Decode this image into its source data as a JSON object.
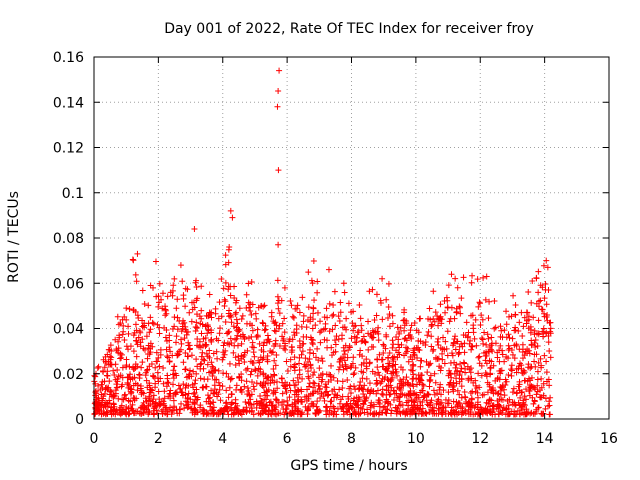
{
  "chart_data": {
    "type": "scatter",
    "title": "Day 001 of 2022, Rate Of TEC Index for receiver froy",
    "xlabel": "GPS time / hours",
    "ylabel": "ROTI / TECUs",
    "xlim": [
      0,
      16
    ],
    "ylim": [
      0,
      0.16
    ],
    "xticks": [
      0,
      2,
      4,
      6,
      8,
      10,
      12,
      14,
      16
    ],
    "yticks": [
      0,
      0.02,
      0.04,
      0.06,
      0.08,
      0.1,
      0.12,
      0.14,
      0.16
    ],
    "xtick_labels": [
      "0",
      "2",
      "4",
      "6",
      "8",
      "10",
      "12",
      "14",
      "16"
    ],
    "ytick_labels": [
      "0",
      "0.02",
      "0.04",
      "0.06",
      "0.08",
      "0.1",
      "0.12",
      "0.14",
      "0.16"
    ],
    "grid": true,
    "marker": "+",
    "color": "#ff0000",
    "data_time_range": [
      0,
      14.2
    ],
    "notable_points": [
      {
        "x": 5.75,
        "y": 0.154
      },
      {
        "x": 5.72,
        "y": 0.145
      },
      {
        "x": 5.7,
        "y": 0.138
      },
      {
        "x": 5.73,
        "y": 0.11
      },
      {
        "x": 5.72,
        "y": 0.077
      },
      {
        "x": 3.12,
        "y": 0.084
      },
      {
        "x": 4.25,
        "y": 0.092
      },
      {
        "x": 4.3,
        "y": 0.089
      },
      {
        "x": 4.2,
        "y": 0.076
      },
      {
        "x": 1.35,
        "y": 0.073
      },
      {
        "x": 2.7,
        "y": 0.068
      },
      {
        "x": 14.05,
        "y": 0.07
      },
      {
        "x": 14.1,
        "y": 0.067
      },
      {
        "x": 12.2,
        "y": 0.063
      },
      {
        "x": 7.3,
        "y": 0.066
      },
      {
        "x": 8.95,
        "y": 0.062
      },
      {
        "x": 14.12,
        "y": 0.057
      },
      {
        "x": 11.3,
        "y": 0.058
      }
    ],
    "envelope_description_hours": [
      [
        0.0,
        0.024
      ],
      [
        0.5,
        0.03
      ],
      [
        0.8,
        0.045
      ],
      [
        1.0,
        0.055
      ],
      [
        1.3,
        0.065
      ],
      [
        1.6,
        0.05
      ],
      [
        2.0,
        0.06
      ],
      [
        2.3,
        0.05
      ],
      [
        2.6,
        0.065
      ],
      [
        2.9,
        0.06
      ],
      [
        3.2,
        0.06
      ],
      [
        3.5,
        0.045
      ],
      [
        3.8,
        0.05
      ],
      [
        4.2,
        0.065
      ],
      [
        4.5,
        0.055
      ],
      [
        4.9,
        0.06
      ],
      [
        5.2,
        0.045
      ],
      [
        5.5,
        0.05
      ],
      [
        5.8,
        0.06
      ],
      [
        6.2,
        0.045
      ],
      [
        6.5,
        0.055
      ],
      [
        6.8,
        0.06
      ],
      [
        7.2,
        0.06
      ],
      [
        7.6,
        0.055
      ],
      [
        8.0,
        0.045
      ],
      [
        8.4,
        0.045
      ],
      [
        8.9,
        0.06
      ],
      [
        9.3,
        0.045
      ],
      [
        9.7,
        0.045
      ],
      [
        10.0,
        0.035
      ],
      [
        10.4,
        0.045
      ],
      [
        10.8,
        0.055
      ],
      [
        11.2,
        0.058
      ],
      [
        11.6,
        0.05
      ],
      [
        12.0,
        0.06
      ],
      [
        12.4,
        0.045
      ],
      [
        12.8,
        0.05
      ],
      [
        13.2,
        0.045
      ],
      [
        13.6,
        0.055
      ],
      [
        14.0,
        0.065
      ],
      [
        14.2,
        0.045
      ]
    ]
  }
}
